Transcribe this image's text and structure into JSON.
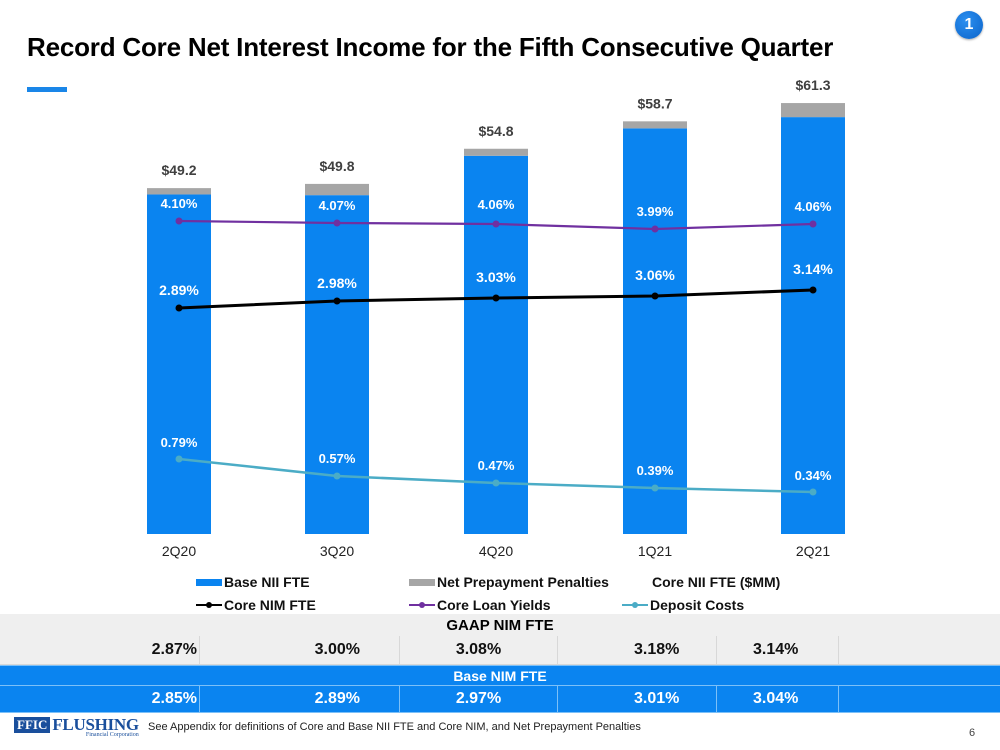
{
  "slide": {
    "title": "Record Core Net Interest Income for the Fifth Consecutive Quarter",
    "badge": "1",
    "page_number": "6",
    "footnote": "See Appendix for definitions of Core and Base NII FTE and Core NIM,  and Net Prepayment Penalties",
    "logo": {
      "mark": "FFIC",
      "name": "FLUSHING",
      "sub": "Financial Corporation"
    },
    "colors": {
      "base_bar": "#0a84f0",
      "penalty_bar": "#a6a6a6",
      "core_nim": "#000000",
      "loan_yields": "#7030a0",
      "deposit_costs": "#4bacc6",
      "accent": "#1a86e8"
    }
  },
  "chart_data": {
    "type": "bar",
    "stacked": true,
    "title": "",
    "xlabel": "",
    "ylabel": "",
    "categories": [
      "2Q20",
      "3Q20",
      "4Q20",
      "1Q21",
      "2Q21"
    ],
    "ylim": [
      0,
      62
    ],
    "grid": false,
    "legend_position": "bottom",
    "series": [
      {
        "name": "Base NII FTE",
        "kind": "bar",
        "values": [
          48.3,
          48.2,
          53.8,
          57.7,
          59.3
        ]
      },
      {
        "name": "Net Prepayment Penalties",
        "kind": "bar",
        "values": [
          0.9,
          1.6,
          1.0,
          1.0,
          2.0
        ]
      }
    ],
    "totals": {
      "name": "Core NII FTE ($MM)",
      "values": [
        49.2,
        49.8,
        54.8,
        58.7,
        61.3
      ],
      "labels": [
        "$49.2",
        "$49.8",
        "$54.8",
        "$58.7",
        "$61.3"
      ]
    },
    "line_series": [
      {
        "name": "Core NIM FTE",
        "kind": "line",
        "values": [
          2.89,
          2.98,
          3.03,
          3.06,
          3.14
        ],
        "labels": [
          "2.89%",
          "2.98%",
          "3.03%",
          "3.06%",
          "3.14%"
        ]
      },
      {
        "name": "Core Loan Yields",
        "kind": "line",
        "values": [
          4.1,
          4.07,
          4.06,
          3.99,
          4.06
        ],
        "labels": [
          "4.10%",
          "4.07%",
          "4.06%",
          "3.99%",
          "4.06%"
        ]
      },
      {
        "name": "Deposit Costs",
        "kind": "line",
        "values": [
          0.79,
          0.57,
          0.47,
          0.39,
          0.34
        ],
        "labels": [
          "0.79%",
          "0.57%",
          "0.47%",
          "0.39%",
          "0.34%"
        ]
      }
    ],
    "legend": [
      "Base NII FTE",
      "Net Prepayment Penalties",
      "Core NII FTE ($MM)",
      "Core NIM FTE",
      "Core Loan Yields",
      "Deposit Costs"
    ]
  },
  "table": {
    "gaap": {
      "header": "GAAP NIM FTE",
      "values": [
        "2.87%",
        "3.00%",
        "3.08%",
        "3.18%",
        "3.14%"
      ]
    },
    "base": {
      "header": "Base NIM FTE",
      "values": [
        "2.85%",
        "2.89%",
        "2.97%",
        "3.01%",
        "3.04%"
      ]
    }
  }
}
